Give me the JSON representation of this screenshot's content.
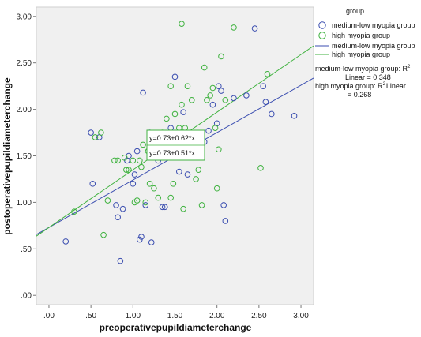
{
  "chart_data": {
    "type": "scatter",
    "xlabel": "preoperativepupildiameterchange",
    "ylabel": "postoperativepupildiameterchange",
    "xlim": [
      -0.15,
      3.15
    ],
    "ylim": [
      -0.1,
      3.1
    ],
    "xticks": [
      ".00",
      ".50",
      "1.00",
      "1.50",
      "2.00",
      "2.50",
      "3.00"
    ],
    "yticks": [
      ".00",
      ".50",
      "1.00",
      "1.50",
      "2.00",
      "2.50",
      "3.00"
    ],
    "grid": false,
    "legend_position": "right",
    "legend": {
      "title": "group",
      "entries": [
        "medium-low myopia group",
        "high myopia group",
        "medium-low myopia group",
        "high myopia group"
      ],
      "annotations": [
        "medium-low myopia group: R",
        "2",
        "Linear = 0.348",
        "high myopia group: R",
        "2",
        "Linear",
        "= 0.268"
      ]
    },
    "equations": [
      "y=0.73+0.62*x",
      "y=0.73+0.51*x"
    ],
    "colors": {
      "medium_low": "#3b4eb0",
      "high": "#3fb23f",
      "plot_bg": "#f0f0f0"
    },
    "series": [
      {
        "name": "medium-low myopia group",
        "marker": "circle",
        "fit": {
          "intercept": 0.73,
          "slope": 0.51
        },
        "points": [
          [
            0.2,
            0.58
          ],
          [
            0.5,
            1.75
          ],
          [
            0.52,
            1.2
          ],
          [
            0.6,
            1.7
          ],
          [
            0.8,
            0.97
          ],
          [
            0.82,
            0.84
          ],
          [
            0.85,
            0.37
          ],
          [
            0.88,
            0.93
          ],
          [
            0.93,
            1.45
          ],
          [
            0.95,
            1.5
          ],
          [
            1.0,
            1.2
          ],
          [
            1.02,
            1.3
          ],
          [
            1.05,
            1.55
          ],
          [
            1.08,
            0.6
          ],
          [
            1.1,
            0.63
          ],
          [
            1.12,
            2.18
          ],
          [
            1.15,
            0.97
          ],
          [
            1.2,
            1.75
          ],
          [
            1.22,
            0.57
          ],
          [
            1.3,
            1.45
          ],
          [
            1.35,
            0.95
          ],
          [
            1.38,
            0.95
          ],
          [
            1.45,
            1.8
          ],
          [
            1.5,
            2.35
          ],
          [
            1.55,
            1.33
          ],
          [
            1.6,
            1.97
          ],
          [
            1.65,
            1.3
          ],
          [
            1.7,
            1.6
          ],
          [
            1.75,
            1.6
          ],
          [
            1.85,
            1.65
          ],
          [
            1.9,
            1.77
          ],
          [
            1.95,
            2.05
          ],
          [
            2.0,
            1.85
          ],
          [
            2.02,
            2.25
          ],
          [
            2.05,
            2.2
          ],
          [
            2.08,
            0.97
          ],
          [
            2.1,
            0.8
          ],
          [
            2.2,
            2.12
          ],
          [
            2.35,
            2.15
          ],
          [
            2.45,
            2.87
          ],
          [
            2.55,
            2.25
          ],
          [
            2.58,
            2.08
          ],
          [
            2.65,
            1.95
          ],
          [
            2.92,
            1.93
          ]
        ]
      },
      {
        "name": "high myopia group",
        "marker": "circle",
        "fit": {
          "intercept": 0.73,
          "slope": 0.62
        },
        "points": [
          [
            0.3,
            0.9
          ],
          [
            0.55,
            1.7
          ],
          [
            0.62,
            1.75
          ],
          [
            0.65,
            0.65
          ],
          [
            0.7,
            1.02
          ],
          [
            0.78,
            1.45
          ],
          [
            0.82,
            1.45
          ],
          [
            0.9,
            1.48
          ],
          [
            0.92,
            1.35
          ],
          [
            0.95,
            1.35
          ],
          [
            1.0,
            1.45
          ],
          [
            1.02,
            1.0
          ],
          [
            1.05,
            1.02
          ],
          [
            1.08,
            1.45
          ],
          [
            1.1,
            1.38
          ],
          [
            1.12,
            1.62
          ],
          [
            1.15,
            1.0
          ],
          [
            1.18,
            1.55
          ],
          [
            1.2,
            1.2
          ],
          [
            1.22,
            1.6
          ],
          [
            1.25,
            1.15
          ],
          [
            1.3,
            1.05
          ],
          [
            1.32,
            1.5
          ],
          [
            1.35,
            1.75
          ],
          [
            1.4,
            1.9
          ],
          [
            1.42,
            1.55
          ],
          [
            1.45,
            1.05
          ],
          [
            1.48,
            1.2
          ],
          [
            1.5,
            1.95
          ],
          [
            1.55,
            1.8
          ],
          [
            1.58,
            2.92
          ],
          [
            1.6,
            0.93
          ],
          [
            1.62,
            1.8
          ],
          [
            1.65,
            2.25
          ],
          [
            1.7,
            2.1
          ],
          [
            1.72,
            1.5
          ],
          [
            1.75,
            1.25
          ],
          [
            1.78,
            1.35
          ],
          [
            1.82,
            0.97
          ],
          [
            1.85,
            2.45
          ],
          [
            1.88,
            2.1
          ],
          [
            1.92,
            2.15
          ],
          [
            1.95,
            2.23
          ],
          [
            1.98,
            1.8
          ],
          [
            2.0,
            1.15
          ],
          [
            2.02,
            1.57
          ],
          [
            2.05,
            2.57
          ],
          [
            2.1,
            2.1
          ],
          [
            2.2,
            2.88
          ],
          [
            2.52,
            1.37
          ],
          [
            2.6,
            2.38
          ],
          [
            1.45,
            2.25
          ],
          [
            1.58,
            2.05
          ]
        ]
      }
    ]
  }
}
